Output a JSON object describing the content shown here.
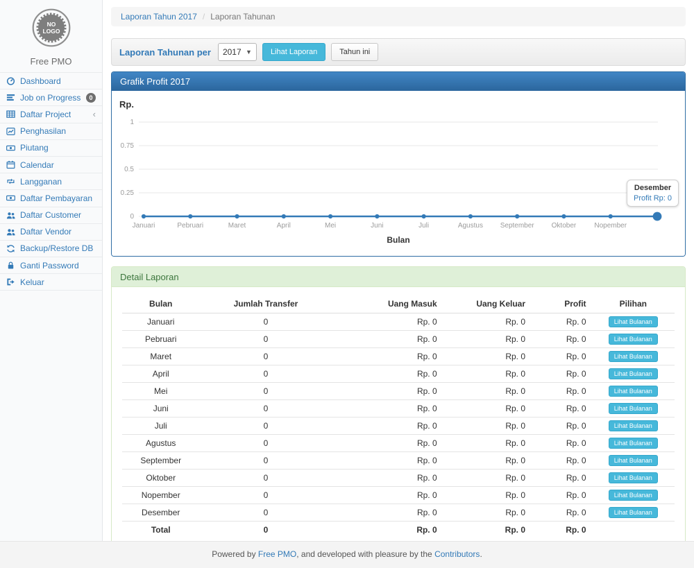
{
  "colors": {
    "accent": "#337ab7",
    "info_button": "#46b8da",
    "panel_primary_border": "#2e6da4",
    "panel_success_bg": "#dff0d8",
    "panel_success_text": "#3c763d",
    "badge_gray": "#6e6e6e"
  },
  "sidebar": {
    "logo_line1": "NO",
    "logo_line2": "LOGO",
    "brand": "Free PMO",
    "items": [
      {
        "label": "Dashboard",
        "icon": "dashboard-icon"
      },
      {
        "label": "Job on Progress",
        "icon": "tasks-icon",
        "badge": "0"
      },
      {
        "label": "Daftar Project",
        "icon": "table-icon",
        "chevron": "‹"
      },
      {
        "label": "Penghasilan",
        "icon": "line-chart-icon"
      },
      {
        "label": "Piutang",
        "icon": "money-icon"
      },
      {
        "label": "Calendar",
        "icon": "calendar-icon"
      },
      {
        "label": "Langganan",
        "icon": "retweet-icon"
      },
      {
        "label": "Daftar Pembayaran",
        "icon": "money-icon"
      },
      {
        "label": "Daftar Customer",
        "icon": "users-icon"
      },
      {
        "label": "Daftar Vendor",
        "icon": "users-icon"
      },
      {
        "label": "Backup/Restore DB",
        "icon": "refresh-icon"
      },
      {
        "label": "Ganti Password",
        "icon": "lock-icon"
      },
      {
        "label": "Keluar",
        "icon": "sign-out-icon"
      }
    ]
  },
  "breadcrumb": {
    "link": "Laporan Tahun 2017",
    "separator": "/",
    "current": "Laporan Tahunan"
  },
  "toolbar": {
    "label": "Laporan Tahunan per",
    "year_value": "2017",
    "view_report_button": "Lihat Laporan",
    "this_year_button": "Tahun ini"
  },
  "chart_panel": {
    "title": "Grafik Profit 2017"
  },
  "chart_data": {
    "type": "line",
    "title": "Grafik Profit 2017",
    "ylabel": "Rp.",
    "xlabel": "Bulan",
    "categories": [
      "Januari",
      "Pebruari",
      "Maret",
      "April",
      "Mei",
      "Juni",
      "Juli",
      "Agustus",
      "September",
      "Oktober",
      "Nopember",
      "Desember"
    ],
    "values": [
      0,
      0,
      0,
      0,
      0,
      0,
      0,
      0,
      0,
      0,
      0,
      0
    ],
    "yticks": [
      "1",
      "0.75",
      "0.5",
      "0.25",
      "0"
    ],
    "ylim": [
      0,
      1
    ],
    "grid": true,
    "last_x_label_hidden": true,
    "line_color": "#337ab7",
    "tooltip": {
      "title": "Desember",
      "value": "Profit Rp: 0"
    }
  },
  "table_panel": {
    "title": "Detail Laporan",
    "columns": [
      "Bulan",
      "Jumlah Transfer",
      "Uang Masuk",
      "Uang Keluar",
      "Profit",
      "Pilihan"
    ],
    "action_label": "Lihat Bulanan",
    "rows": [
      [
        "Januari",
        "0",
        "Rp. 0",
        "Rp. 0",
        "Rp. 0"
      ],
      [
        "Pebruari",
        "0",
        "Rp. 0",
        "Rp. 0",
        "Rp. 0"
      ],
      [
        "Maret",
        "0",
        "Rp. 0",
        "Rp. 0",
        "Rp. 0"
      ],
      [
        "April",
        "0",
        "Rp. 0",
        "Rp. 0",
        "Rp. 0"
      ],
      [
        "Mei",
        "0",
        "Rp. 0",
        "Rp. 0",
        "Rp. 0"
      ],
      [
        "Juni",
        "0",
        "Rp. 0",
        "Rp. 0",
        "Rp. 0"
      ],
      [
        "Juli",
        "0",
        "Rp. 0",
        "Rp. 0",
        "Rp. 0"
      ],
      [
        "Agustus",
        "0",
        "Rp. 0",
        "Rp. 0",
        "Rp. 0"
      ],
      [
        "September",
        "0",
        "Rp. 0",
        "Rp. 0",
        "Rp. 0"
      ],
      [
        "Oktober",
        "0",
        "Rp. 0",
        "Rp. 0",
        "Rp. 0"
      ],
      [
        "Nopember",
        "0",
        "Rp. 0",
        "Rp. 0",
        "Rp. 0"
      ],
      [
        "Desember",
        "0",
        "Rp. 0",
        "Rp. 0",
        "Rp. 0"
      ]
    ],
    "total_row": [
      "Total",
      "0",
      "Rp. 0",
      "Rp. 0",
      "Rp. 0"
    ]
  },
  "footer": {
    "prefix": "Powered by ",
    "link1": "Free PMO",
    "middle": ", and developed with pleasure by the ",
    "link2": "Contributors",
    "suffix": "."
  }
}
